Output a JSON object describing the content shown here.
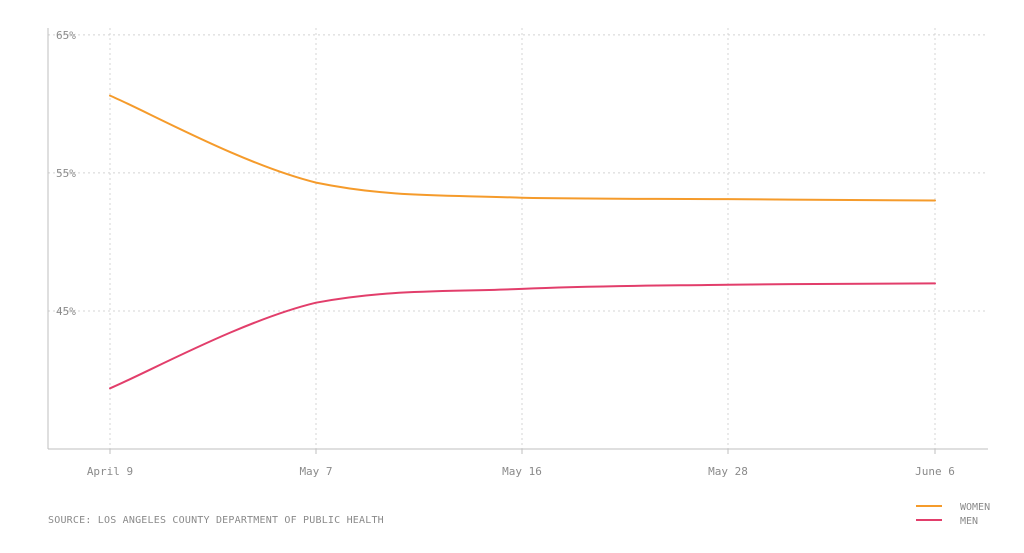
{
  "chart_data": {
    "type": "line",
    "x": [
      "April 9",
      "May 7",
      "May 16",
      "May 28",
      "June 6"
    ],
    "y_ticks": [
      "65%",
      "55%",
      "45%"
    ],
    "y_tick_values": [
      65,
      55,
      45
    ],
    "ylim": [
      35,
      65.5
    ],
    "grid": true,
    "legend_position": "bottom-right",
    "series": [
      {
        "name": "WOMEN",
        "color": "#f59b2b",
        "values": [
          60.6,
          54.3,
          53.2,
          53.1,
          53.0
        ]
      },
      {
        "name": "MEN",
        "color": "#e23e6b",
        "values": [
          39.4,
          45.6,
          46.6,
          46.9,
          47.0
        ]
      }
    ]
  },
  "source": "SOURCE: LOS ANGELES COUNTY DEPARTMENT OF PUBLIC HEALTH"
}
